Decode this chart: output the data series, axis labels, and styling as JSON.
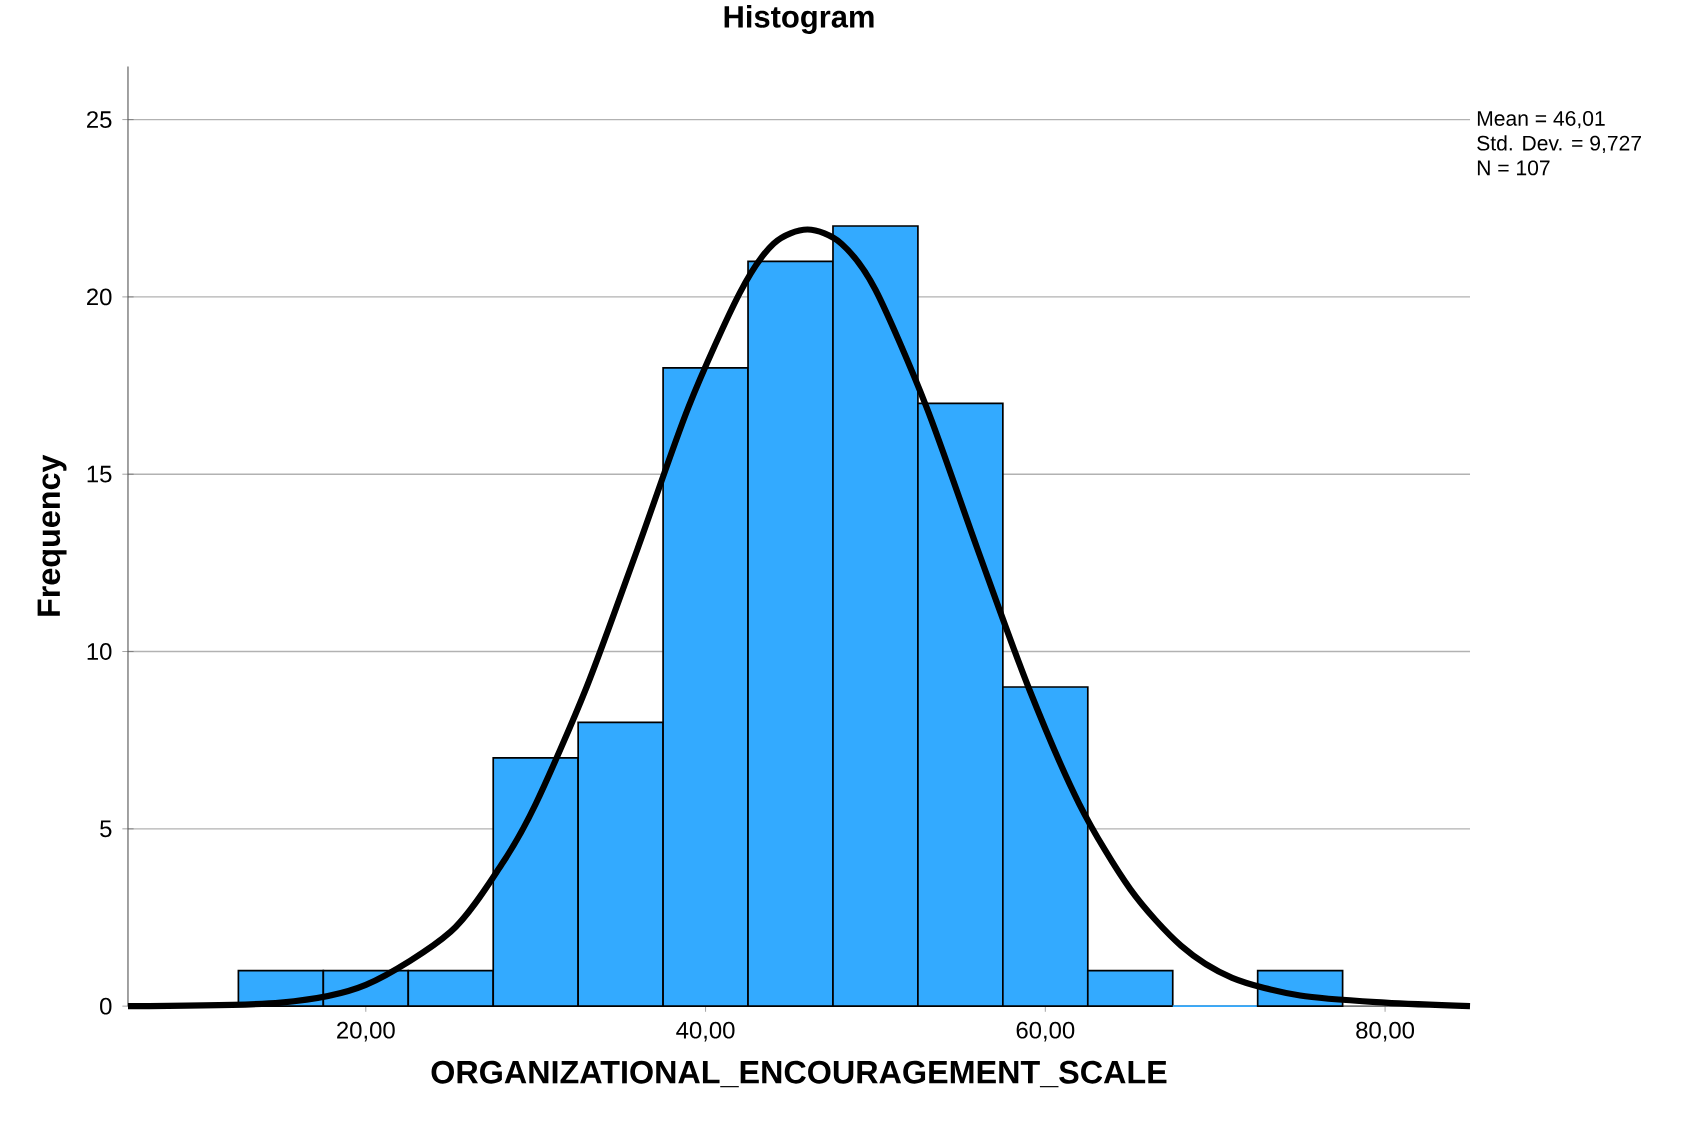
{
  "chart_data": {
    "type": "histogram",
    "title": "Histogram",
    "xlabel": "ORGANIZATIONAL_ENCOURAGEMENT_SCALE",
    "ylabel": "Frequency",
    "bins": [
      12.5,
      17.5,
      22.5,
      27.5,
      32.5,
      37.5,
      42.5,
      47.5,
      52.5,
      57.5,
      62.5,
      67.5,
      72.5,
      77.5
    ],
    "values": [
      1,
      1,
      1,
      7,
      8,
      18,
      21,
      22,
      17,
      9,
      1,
      0,
      1
    ],
    "color": "#33aaff",
    "series": [
      {
        "type": "line",
        "color": "#000000",
        "x": [
          6,
          15,
          20,
          25,
          28,
          30,
          33,
          36,
          39,
          42,
          44,
          46,
          48,
          50,
          53,
          56,
          59,
          62,
          65,
          68,
          71,
          75,
          80,
          85
        ],
        "values": [
          0.0,
          0.1,
          0.6,
          2.1,
          4.0,
          5.7,
          9.0,
          12.9,
          16.9,
          20.1,
          21.5,
          21.9,
          21.5,
          20.2,
          16.9,
          12.9,
          9.0,
          5.7,
          3.3,
          1.7,
          0.8,
          0.3,
          0.1,
          0.0
        ]
      }
    ],
    "xlim": [
      6,
      85
    ],
    "ylim": [
      0,
      26.5
    ],
    "xticks": [
      {
        "value": 20,
        "label": "20,00"
      },
      {
        "value": 40,
        "label": "40,00"
      },
      {
        "value": 60,
        "label": "60,00"
      },
      {
        "value": 80,
        "label": "80,00"
      }
    ],
    "yticks": [
      0,
      5,
      10,
      15,
      20,
      25
    ],
    "grid": "y",
    "annotations": [
      "Mean = 46,01",
      "Std. Dev. = 9,727",
      "N = 107"
    ]
  }
}
